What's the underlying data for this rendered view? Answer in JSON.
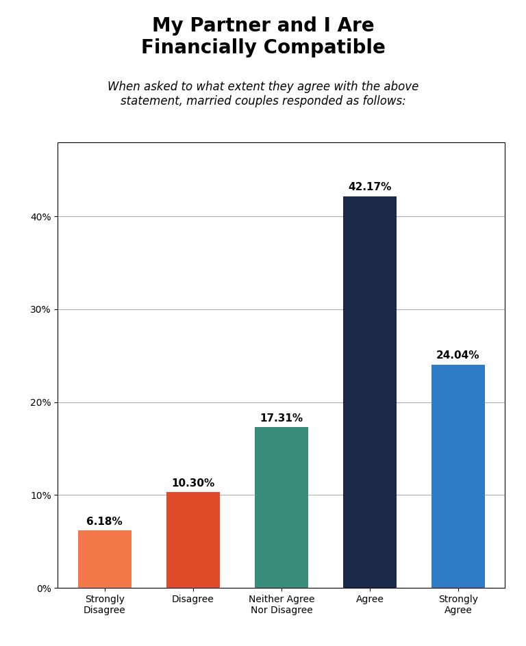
{
  "chart_data": {
    "type": "bar",
    "title": "My Partner and I Are\nFinancially Compatible",
    "subtitle": "When asked to what extent they agree with the above\nstatement, married couples responded as follows:",
    "categories": [
      "Strongly\nDisagree",
      "Disagree",
      "Neither Agree\nNor Disagree",
      "Agree",
      "Strongly\nAgree"
    ],
    "values": [
      6.18,
      10.3,
      17.31,
      42.17,
      24.04
    ],
    "value_labels": [
      "6.18%",
      "10.30%",
      "17.31%",
      "42.17%",
      "24.04%"
    ],
    "data_labels": true,
    "colors": [
      "#F4784A",
      "#E04B2A",
      "#3A8C7A",
      "#1B2A4A",
      "#2E7DC4"
    ],
    "ylim": [
      0,
      48
    ],
    "yticks": [
      {
        "value": 0,
        "label": "0%"
      },
      {
        "value": 10,
        "label": "10%"
      },
      {
        "value": 20,
        "label": "20%"
      },
      {
        "value": 30,
        "label": "30%"
      },
      {
        "value": 40,
        "label": "40%"
      }
    ],
    "grid": true
  }
}
